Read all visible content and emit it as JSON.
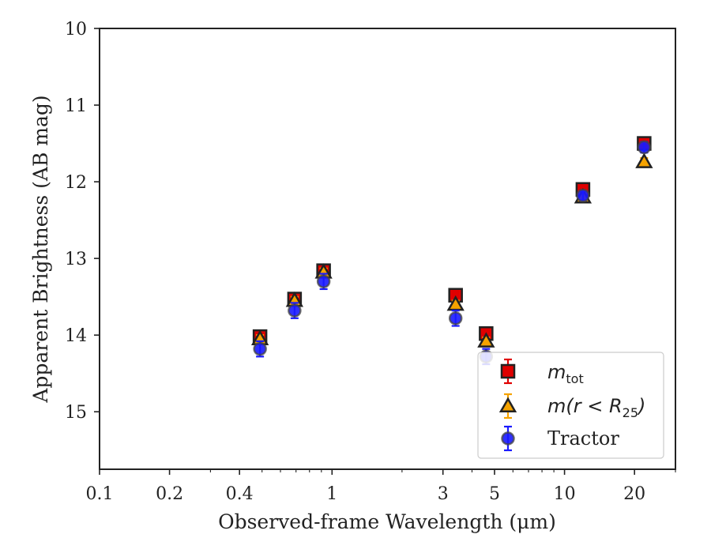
{
  "chart_data": {
    "type": "scatter",
    "xlabel": "Observed-frame Wavelength (μm)",
    "ylabel": "Apparent Brightness (AB mag)",
    "x_scale": "log",
    "xlim": [
      0.1,
      30
    ],
    "ylim": [
      15.75,
      10
    ],
    "y_inverted": true,
    "x_ticks": [
      {
        "value": 0.1,
        "label": "0.1"
      },
      {
        "value": 0.2,
        "label": "0.2"
      },
      {
        "value": 0.4,
        "label": "0.4"
      },
      {
        "value": 1,
        "label": "1"
      },
      {
        "value": 3,
        "label": "3"
      },
      {
        "value": 5,
        "label": "5"
      },
      {
        "value": 10,
        "label": "10"
      },
      {
        "value": 20,
        "label": "20"
      }
    ],
    "y_ticks": [
      {
        "value": 10,
        "label": "10"
      },
      {
        "value": 11,
        "label": "11"
      },
      {
        "value": 12,
        "label": "12"
      },
      {
        "value": 13,
        "label": "13"
      },
      {
        "value": 14,
        "label": "14"
      },
      {
        "value": 15,
        "label": "15"
      }
    ],
    "grid": false,
    "legend_position": "lower-right",
    "series": [
      {
        "key": "mtot",
        "marker": "square",
        "color": "#e00000",
        "edge_color": "#222222",
        "error_color": "#e00000",
        "points": [
          {
            "x": 0.49,
            "y": 14.02,
            "err": 0.07
          },
          {
            "x": 0.69,
            "y": 13.53,
            "err": 0.07
          },
          {
            "x": 0.92,
            "y": 13.16,
            "err": 0.07
          },
          {
            "x": 3.4,
            "y": 13.48,
            "err": 0.05
          },
          {
            "x": 4.6,
            "y": 13.98,
            "err": 0.05
          },
          {
            "x": 12.0,
            "y": 12.1,
            "err": 0.08
          },
          {
            "x": 22.0,
            "y": 11.5,
            "err": 0.08
          }
        ]
      },
      {
        "key": "mr25",
        "marker": "triangle",
        "color": "#f5a300",
        "edge_color": "#222222",
        "error_color": "#f5a300",
        "points": [
          {
            "x": 0.49,
            "y": 14.05,
            "err": 0.05
          },
          {
            "x": 0.69,
            "y": 13.55,
            "err": 0.05
          },
          {
            "x": 0.92,
            "y": 13.18,
            "err": 0.05
          },
          {
            "x": 3.4,
            "y": 13.6,
            "err": 0.05
          },
          {
            "x": 4.6,
            "y": 14.08,
            "err": 0.05
          },
          {
            "x": 12.0,
            "y": 12.2,
            "err": 0.05
          },
          {
            "x": 22.0,
            "y": 11.74,
            "err": 0.05
          }
        ]
      },
      {
        "key": "tractor",
        "marker": "circle",
        "color": "#1a1aff",
        "edge_color": "#444444",
        "error_color": "#1a1aff",
        "points": [
          {
            "x": 0.49,
            "y": 14.18,
            "err": 0.1
          },
          {
            "x": 0.69,
            "y": 13.68,
            "err": 0.1
          },
          {
            "x": 0.92,
            "y": 13.3,
            "err": 0.1
          },
          {
            "x": 3.4,
            "y": 13.78,
            "err": 0.1
          },
          {
            "x": 4.6,
            "y": 14.28,
            "err": 0.1
          },
          {
            "x": 12.0,
            "y": 12.18,
            "err": 0.06
          },
          {
            "x": 22.0,
            "y": 11.55,
            "err": 0.07
          }
        ]
      }
    ],
    "legend": [
      {
        "series": "mtot",
        "label_main": "m",
        "label_sub": "tot",
        "label_rest": ""
      },
      {
        "series": "mr25",
        "label_main": "m(r < R",
        "label_sub": "25",
        "label_rest": ")"
      },
      {
        "series": "tractor",
        "label_text": "Tractor"
      }
    ]
  }
}
